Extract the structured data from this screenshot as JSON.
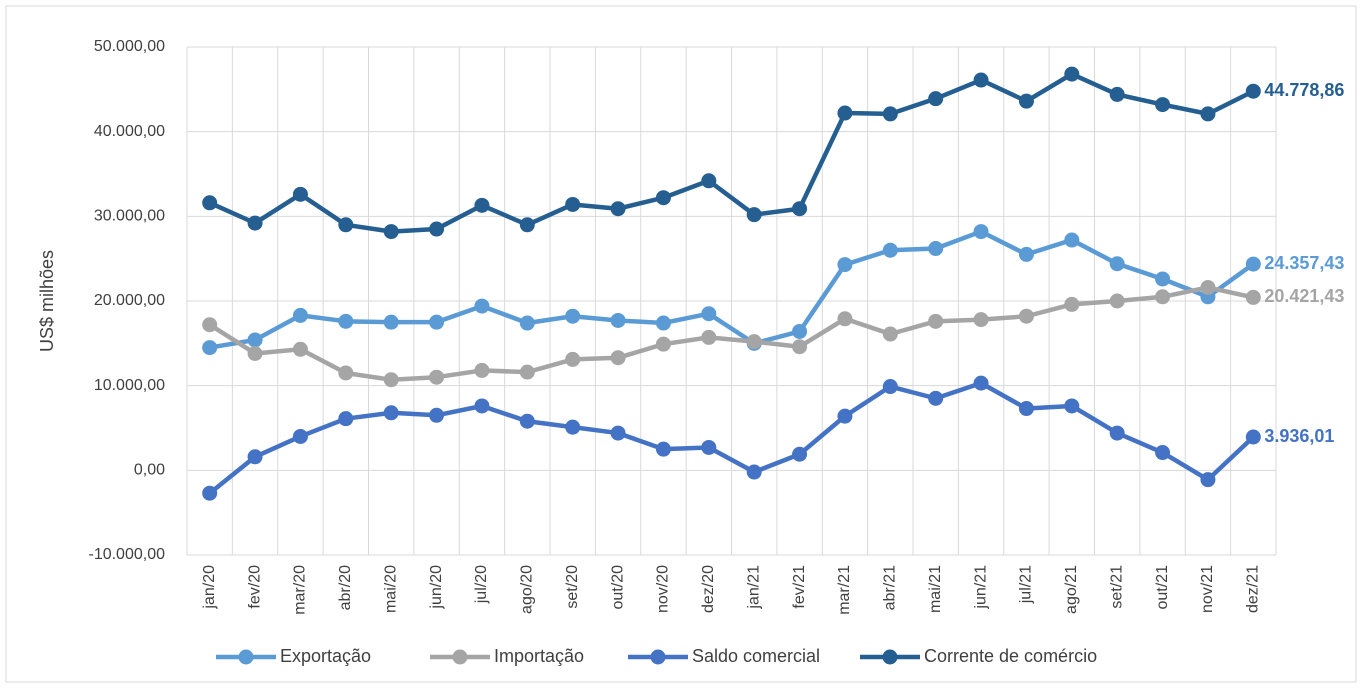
{
  "chart_data": {
    "type": "line",
    "y_label": "US$ milhões",
    "categories": [
      "jan/20",
      "fev/20",
      "mar/20",
      "abr/20",
      "mai/20",
      "jun/20",
      "jul/20",
      "ago/20",
      "set/20",
      "out/20",
      "nov/20",
      "dez/20",
      "jan/21",
      "fev/21",
      "mar/21",
      "abr/21",
      "mai/21",
      "jun/21",
      "jul/21",
      "ago/21",
      "set/21",
      "out/21",
      "nov/21",
      "dez/21"
    ],
    "ylim": [
      -10000,
      50000
    ],
    "yticks": [
      {
        "value": -10000,
        "label": "-10.000,00"
      },
      {
        "value": 0,
        "label": "0,00"
      },
      {
        "value": 10000,
        "label": "10.000,00"
      },
      {
        "value": 20000,
        "label": "20.000,00"
      },
      {
        "value": 30000,
        "label": "30.000,00"
      },
      {
        "value": 40000,
        "label": "40.000,00"
      },
      {
        "value": 50000,
        "label": "50.000,00"
      }
    ],
    "grid": true,
    "legend": "bottom",
    "series": [
      {
        "name": "Exportação",
        "color": "#5b9bd5",
        "values": [
          14500,
          15400,
          18300,
          17600,
          17500,
          17500,
          19400,
          17400,
          18200,
          17700,
          17400,
          18500,
          15000,
          16400,
          24300,
          26000,
          26200,
          28200,
          25500,
          27200,
          24400,
          22600,
          20500,
          24357.43
        ],
        "value_labels": [
          null,
          null,
          null,
          null,
          null,
          null,
          null,
          null,
          null,
          null,
          null,
          null,
          null,
          null,
          null,
          null,
          null,
          null,
          null,
          null,
          null,
          null,
          null,
          "24.357,43"
        ]
      },
      {
        "name": "Importação",
        "color": "#a5a5a5",
        "values": [
          17200,
          13800,
          14300,
          11500,
          10700,
          11000,
          11800,
          11600,
          13100,
          13300,
          14900,
          15700,
          15200,
          14600,
          17900,
          16100,
          17600,
          17800,
          18200,
          19600,
          20000,
          20500,
          21600,
          20421.43
        ],
        "value_labels": [
          null,
          null,
          null,
          null,
          null,
          null,
          null,
          null,
          null,
          null,
          null,
          null,
          null,
          null,
          null,
          null,
          null,
          null,
          null,
          null,
          null,
          null,
          null,
          "20.421,43"
        ]
      },
      {
        "name": "Saldo comercial",
        "color": "#4472c4",
        "values": [
          -2700,
          1600,
          4000,
          6100,
          6800,
          6500,
          7600,
          5800,
          5100,
          4400,
          2500,
          2700,
          -200,
          1900,
          6400,
          9900,
          8500,
          10300,
          7300,
          7600,
          4400,
          2100,
          -1100,
          3936.01
        ],
        "value_labels": [
          null,
          null,
          null,
          null,
          null,
          null,
          null,
          null,
          null,
          null,
          null,
          null,
          null,
          null,
          null,
          null,
          null,
          null,
          null,
          null,
          null,
          null,
          null,
          "3.936,01"
        ]
      },
      {
        "name": "Corrente de comércio",
        "color": "#255e91",
        "values": [
          31600,
          29200,
          32600,
          29000,
          28200,
          28500,
          31300,
          29000,
          31400,
          30900,
          32200,
          34200,
          30200,
          30900,
          42200,
          42100,
          43900,
          46100,
          43600,
          46800,
          44400,
          43200,
          42100,
          44778.86
        ],
        "value_labels": [
          null,
          null,
          null,
          null,
          null,
          null,
          null,
          null,
          null,
          null,
          null,
          null,
          null,
          null,
          null,
          null,
          null,
          null,
          null,
          null,
          null,
          null,
          null,
          "44.778,86"
        ]
      }
    ]
  }
}
